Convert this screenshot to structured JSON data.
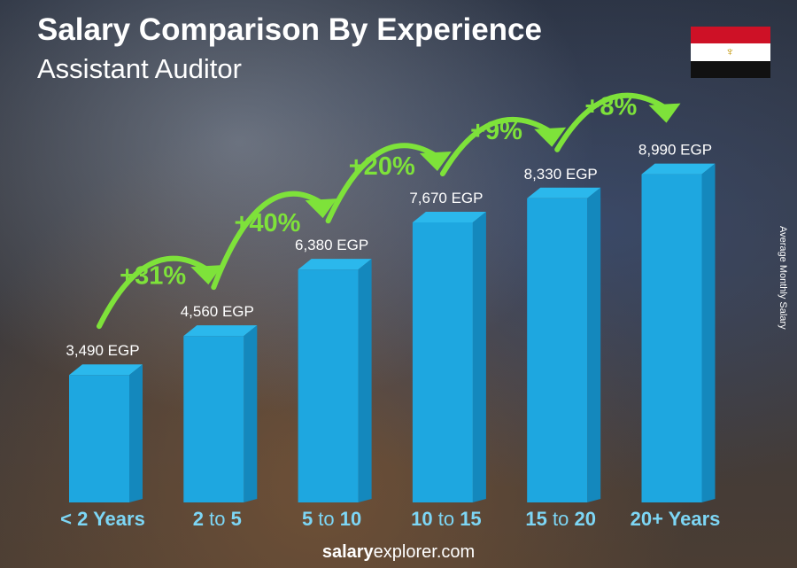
{
  "title": "Salary Comparison By Experience",
  "subtitle": "Assistant Auditor",
  "y_axis_label": "Average Monthly Salary",
  "footer": {
    "bold": "salary",
    "rest": "explorer",
    "tld": ".com"
  },
  "flag": {
    "colors": [
      "#ce1126",
      "#ffffff",
      "#000000"
    ],
    "emblem": "eagle-of-saladin"
  },
  "chart_data": {
    "type": "bar",
    "categories": [
      [
        "< 2 Years"
      ],
      [
        "2",
        " to ",
        "5"
      ],
      [
        "5",
        " to ",
        "10"
      ],
      [
        "10",
        " to ",
        "15"
      ],
      [
        "15",
        " to ",
        "20"
      ],
      [
        "20+ Years"
      ]
    ],
    "values": [
      3490,
      4560,
      6380,
      7670,
      8330,
      8990
    ],
    "value_labels": [
      "3,490 EGP",
      "4,560 EGP",
      "6,380 EGP",
      "7,670 EGP",
      "8,330 EGP",
      "8,990 EGP"
    ],
    "changes": [
      "+31%",
      "+40%",
      "+20%",
      "+9%",
      "+8%"
    ],
    "ylabel": "Average Monthly Salary",
    "bar_color": "#1ea7e0",
    "change_color": "#7ee23a",
    "category_color": "#7dd6f5"
  }
}
